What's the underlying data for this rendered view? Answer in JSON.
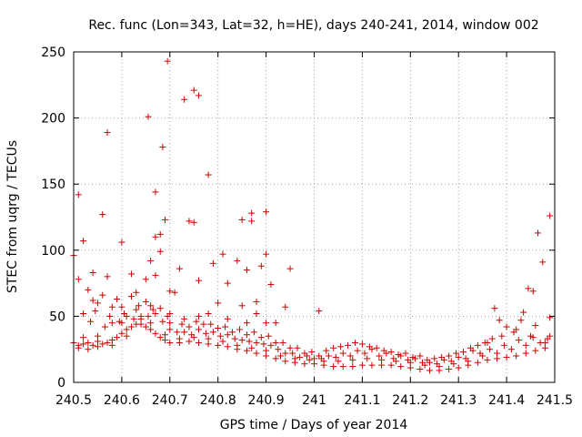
{
  "chart_data": {
    "type": "scatter",
    "title": "Rec. func (Lon=343, Lat=32, h=HE), days 240-241, 2014, window 002",
    "xlabel": "GPS time / Days of year 2014",
    "ylabel": "STEC from uqrg / TECUs",
    "xlim": [
      240.5,
      241.5
    ],
    "ylim": [
      0,
      250
    ],
    "xticks": [
      240.5,
      240.6,
      240.7,
      240.8,
      240.9,
      241,
      241.1,
      241.2,
      241.3,
      241.4,
      241.5
    ],
    "xtick_labels": [
      "240.5",
      "240.6",
      "240.7",
      "240.8",
      "240.9",
      "241",
      "241.1",
      "241.2",
      "241.3",
      "241.4",
      "241.5"
    ],
    "yticks": [
      0,
      50,
      100,
      150,
      200,
      250
    ],
    "ytick_labels": [
      "0",
      "50",
      "100",
      "150",
      "200",
      "250"
    ],
    "grid": true,
    "marker": "plus",
    "color": "#cc0000",
    "points": [
      [
        240.5,
        96
      ],
      [
        240.51,
        142
      ],
      [
        240.51,
        78
      ],
      [
        240.52,
        107
      ],
      [
        240.53,
        70
      ],
      [
        240.54,
        83
      ],
      [
        240.55,
        60
      ],
      [
        240.56,
        127
      ],
      [
        240.57,
        189
      ],
      [
        240.57,
        80
      ],
      [
        240.59,
        63
      ],
      [
        240.6,
        106
      ],
      [
        240.62,
        82
      ],
      [
        240.62,
        65
      ],
      [
        240.65,
        78
      ],
      [
        240.655,
        201
      ],
      [
        240.67,
        144
      ],
      [
        240.67,
        110
      ],
      [
        240.68,
        112
      ],
      [
        240.68,
        99
      ],
      [
        240.685,
        178
      ],
      [
        240.69,
        123
      ],
      [
        240.695,
        243
      ],
      [
        240.7,
        69
      ],
      [
        240.72,
        86
      ],
      [
        240.73,
        214
      ],
      [
        240.74,
        122
      ],
      [
        240.75,
        121
      ],
      [
        240.75,
        221
      ],
      [
        240.76,
        217
      ],
      [
        240.78,
        157
      ],
      [
        240.79,
        90
      ],
      [
        240.81,
        97
      ],
      [
        240.82,
        75
      ],
      [
        240.84,
        92
      ],
      [
        240.85,
        123
      ],
      [
        240.86,
        85
      ],
      [
        240.87,
        128
      ],
      [
        240.87,
        122
      ],
      [
        240.89,
        88
      ],
      [
        240.9,
        129
      ],
      [
        240.9,
        97
      ],
      [
        240.91,
        74
      ],
      [
        240.95,
        86
      ],
      [
        240.94,
        57
      ],
      [
        241.01,
        54
      ],
      [
        240.66,
        92
      ],
      [
        240.67,
        81
      ],
      [
        240.71,
        68
      ],
      [
        240.76,
        77
      ],
      [
        240.8,
        60
      ],
      [
        240.88,
        61
      ],
      [
        240.52,
        52
      ],
      [
        240.54,
        62
      ],
      [
        240.56,
        66
      ],
      [
        240.58,
        57
      ],
      [
        240.6,
        57
      ],
      [
        240.63,
        68
      ],
      [
        240.65,
        61
      ],
      [
        240.68,
        56
      ],
      [
        240.7,
        52
      ],
      [
        240.73,
        48
      ],
      [
        240.76,
        50
      ],
      [
        240.78,
        52
      ],
      [
        240.82,
        48
      ],
      [
        240.85,
        58
      ],
      [
        240.88,
        52
      ],
      [
        240.92,
        45
      ],
      [
        240.9,
        45
      ],
      [
        240.86,
        45
      ],
      [
        240.5,
        30
      ],
      [
        240.51,
        28
      ],
      [
        240.52,
        29
      ],
      [
        240.53,
        30
      ],
      [
        240.54,
        28
      ],
      [
        240.55,
        31
      ],
      [
        240.56,
        29
      ],
      [
        240.57,
        30
      ],
      [
        240.58,
        32
      ],
      [
        240.59,
        34
      ],
      [
        240.6,
        37
      ],
      [
        240.61,
        40
      ],
      [
        240.62,
        42
      ],
      [
        240.63,
        44
      ],
      [
        240.64,
        44
      ],
      [
        240.65,
        42
      ],
      [
        240.66,
        40
      ],
      [
        240.67,
        37
      ],
      [
        240.68,
        34
      ],
      [
        240.69,
        32
      ],
      [
        240.7,
        30
      ],
      [
        240.72,
        30
      ],
      [
        240.74,
        31
      ],
      [
        240.76,
        30
      ],
      [
        240.78,
        29
      ],
      [
        240.8,
        28
      ],
      [
        240.82,
        27
      ],
      [
        240.84,
        25
      ],
      [
        240.86,
        24
      ],
      [
        240.88,
        22
      ],
      [
        240.9,
        20
      ],
      [
        240.92,
        18
      ],
      [
        240.94,
        16
      ],
      [
        240.96,
        15
      ],
      [
        240.98,
        14
      ],
      [
        241.0,
        14
      ],
      [
        241.02,
        13
      ],
      [
        241.04,
        12
      ],
      [
        241.06,
        12
      ],
      [
        241.08,
        12
      ],
      [
        241.1,
        13
      ],
      [
        241.12,
        13
      ],
      [
        241.14,
        13
      ],
      [
        241.16,
        13
      ],
      [
        241.18,
        12
      ],
      [
        241.2,
        11
      ],
      [
        241.22,
        10
      ],
      [
        241.24,
        9
      ],
      [
        241.26,
        9
      ],
      [
        241.28,
        10
      ],
      [
        241.3,
        11
      ],
      [
        241.32,
        13
      ],
      [
        241.34,
        15
      ],
      [
        241.36,
        17
      ],
      [
        241.38,
        18
      ],
      [
        241.4,
        19
      ],
      [
        241.42,
        20
      ],
      [
        241.44,
        22
      ],
      [
        241.46,
        24
      ],
      [
        241.48,
        26
      ],
      [
        240.51,
        26
      ],
      [
        240.53,
        25
      ],
      [
        240.55,
        27
      ],
      [
        240.58,
        28
      ],
      [
        240.61,
        35
      ],
      [
        240.64,
        48
      ],
      [
        240.66,
        45
      ],
      [
        240.69,
        36
      ],
      [
        240.72,
        33
      ],
      [
        240.75,
        34
      ],
      [
        240.78,
        33
      ],
      [
        240.81,
        31
      ],
      [
        240.84,
        28
      ],
      [
        240.87,
        26
      ],
      [
        240.9,
        24
      ],
      [
        240.93,
        20
      ],
      [
        240.96,
        18
      ],
      [
        240.99,
        17
      ],
      [
        241.02,
        16
      ],
      [
        241.05,
        16
      ],
      [
        241.08,
        17
      ],
      [
        241.11,
        18
      ],
      [
        241.14,
        17
      ],
      [
        241.17,
        16
      ],
      [
        241.2,
        15
      ],
      [
        241.23,
        13
      ],
      [
        241.26,
        12
      ],
      [
        241.29,
        14
      ],
      [
        241.32,
        16
      ],
      [
        241.35,
        20
      ],
      [
        241.38,
        22
      ],
      [
        241.41,
        25
      ],
      [
        241.44,
        28
      ],
      [
        241.47,
        30
      ],
      [
        240.52,
        34
      ],
      [
        240.55,
        35
      ],
      [
        240.58,
        45
      ],
      [
        240.61,
        50
      ],
      [
        240.64,
        50
      ],
      [
        240.67,
        52
      ],
      [
        240.7,
        40
      ],
      [
        240.73,
        38
      ],
      [
        240.76,
        40
      ],
      [
        240.79,
        38
      ],
      [
        240.82,
        36
      ],
      [
        240.85,
        32
      ],
      [
        240.88,
        30
      ],
      [
        240.91,
        28
      ],
      [
        240.94,
        22
      ],
      [
        240.97,
        19
      ],
      [
        241.0,
        18
      ],
      [
        241.03,
        20
      ],
      [
        241.06,
        22
      ],
      [
        241.09,
        24
      ],
      [
        241.12,
        25
      ],
      [
        241.15,
        22
      ],
      [
        241.18,
        20
      ],
      [
        241.21,
        18
      ],
      [
        241.24,
        15
      ],
      [
        241.27,
        17
      ],
      [
        241.3,
        19
      ],
      [
        241.33,
        24
      ],
      [
        241.36,
        30
      ],
      [
        241.39,
        35
      ],
      [
        241.42,
        40
      ],
      [
        241.45,
        35
      ],
      [
        241.48,
        30
      ],
      [
        240.6,
        45
      ],
      [
        240.63,
        55
      ],
      [
        240.66,
        58
      ],
      [
        240.7,
        45
      ],
      [
        240.74,
        42
      ],
      [
        240.77,
        44
      ],
      [
        240.8,
        41
      ],
      [
        240.83,
        38
      ],
      [
        240.86,
        36
      ],
      [
        240.89,
        34
      ],
      [
        240.92,
        30
      ],
      [
        240.95,
        26
      ],
      [
        240.98,
        22
      ],
      [
        241.01,
        20
      ],
      [
        241.04,
        26
      ],
      [
        241.07,
        28
      ],
      [
        241.1,
        29
      ],
      [
        241.13,
        26
      ],
      [
        241.16,
        23
      ],
      [
        241.19,
        22
      ],
      [
        241.22,
        20
      ],
      [
        241.25,
        18
      ],
      [
        241.28,
        20
      ],
      [
        241.31,
        23
      ],
      [
        241.34,
        28
      ],
      [
        241.37,
        33
      ],
      [
        241.4,
        42
      ],
      [
        241.43,
        47
      ],
      [
        241.46,
        43
      ],
      [
        241.49,
        35
      ],
      [
        240.545,
        54
      ],
      [
        240.575,
        50
      ],
      [
        240.605,
        52
      ],
      [
        240.635,
        58
      ],
      [
        240.665,
        55
      ],
      [
        240.695,
        50
      ],
      [
        240.725,
        44
      ],
      [
        240.755,
        46
      ],
      [
        240.785,
        44
      ],
      [
        240.815,
        42
      ],
      [
        240.845,
        40
      ],
      [
        240.875,
        38
      ],
      [
        240.905,
        35
      ],
      [
        240.935,
        30
      ],
      [
        240.965,
        26
      ],
      [
        240.995,
        23
      ],
      [
        241.025,
        24
      ],
      [
        241.055,
        27
      ],
      [
        241.085,
        30
      ],
      [
        241.115,
        27
      ],
      [
        241.145,
        24
      ],
      [
        241.175,
        21
      ],
      [
        241.205,
        19
      ],
      [
        241.235,
        17
      ],
      [
        241.265,
        19
      ],
      [
        241.295,
        22
      ],
      [
        241.325,
        26
      ],
      [
        241.355,
        30
      ],
      [
        241.375,
        56
      ],
      [
        241.385,
        47
      ],
      [
        241.415,
        38
      ],
      [
        241.435,
        53
      ],
      [
        241.445,
        71
      ],
      [
        241.455,
        69
      ],
      [
        241.465,
        113
      ],
      [
        241.475,
        91
      ],
      [
        241.49,
        126
      ],
      [
        241.49,
        49
      ],
      [
        240.535,
        46
      ],
      [
        240.565,
        42
      ],
      [
        240.595,
        46
      ],
      [
        240.625,
        48
      ],
      [
        240.655,
        50
      ],
      [
        240.685,
        46
      ],
      [
        240.715,
        38
      ],
      [
        240.745,
        36
      ],
      [
        240.775,
        37
      ],
      [
        240.805,
        35
      ],
      [
        240.835,
        33
      ],
      [
        240.865,
        31
      ],
      [
        240.895,
        29
      ],
      [
        240.925,
        25
      ],
      [
        240.955,
        22
      ],
      [
        240.985,
        20
      ],
      [
        241.015,
        18
      ],
      [
        241.045,
        19
      ],
      [
        241.075,
        20
      ],
      [
        241.105,
        22
      ],
      [
        241.135,
        20
      ],
      [
        241.165,
        18
      ],
      [
        241.195,
        17
      ],
      [
        241.225,
        15
      ],
      [
        241.255,
        14
      ],
      [
        241.285,
        16
      ],
      [
        241.315,
        18
      ],
      [
        241.345,
        22
      ],
      [
        241.365,
        25
      ],
      [
        241.395,
        28
      ],
      [
        241.425,
        32
      ],
      [
        241.455,
        34
      ],
      [
        241.485,
        33
      ]
    ]
  }
}
